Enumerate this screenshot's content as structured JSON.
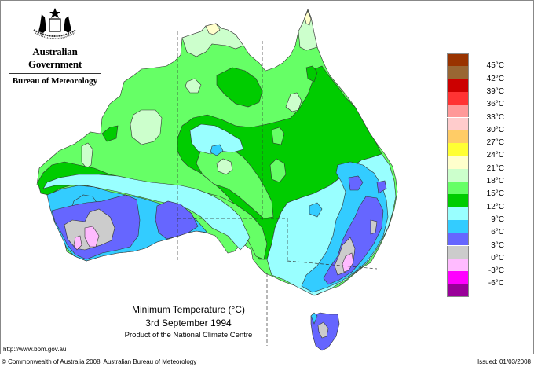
{
  "header": {
    "government": "Australian Government",
    "agency": "Bureau of Meteorology",
    "emblem_icon": "coat-of-arms-icon"
  },
  "map": {
    "title": "Minimum Temperature (°C)",
    "date": "3rd September 1994",
    "product": "Product of the National Climate Centre",
    "region": "Australia"
  },
  "legend": {
    "unit": "°C",
    "bands": [
      {
        "color": "#993300",
        "label": "45°C"
      },
      {
        "color": "#996633",
        "label": "42°C"
      },
      {
        "color": "#cc0000",
        "label": "39°C"
      },
      {
        "color": "#ff3333",
        "label": "36°C"
      },
      {
        "color": "#ff9999",
        "label": "33°C"
      },
      {
        "color": "#ffcccc",
        "label": "30°C"
      },
      {
        "color": "#ffcc66",
        "label": "27°C"
      },
      {
        "color": "#ffff33",
        "label": "24°C"
      },
      {
        "color": "#ffffcc",
        "label": "21°C"
      },
      {
        "color": "#ccffcc",
        "label": "18°C"
      },
      {
        "color": "#66ff66",
        "label": "15°C"
      },
      {
        "color": "#00cc00",
        "label": "12°C"
      },
      {
        "color": "#99ffff",
        "label": "9°C"
      },
      {
        "color": "#33ccff",
        "label": "6°C"
      },
      {
        "color": "#6666ff",
        "label": "3°C"
      },
      {
        "color": "#cccccc",
        "label": "0°C"
      },
      {
        "color": "#ffbbff",
        "label": "-3°C"
      },
      {
        "color": "#ff00ff",
        "label": "-6°C"
      },
      {
        "color": "#990099",
        "label": ""
      }
    ]
  },
  "footer": {
    "url": "http://www.bom.gov.au",
    "copyright": "© Commonwealth of Australia 2008, Australian Bureau of Meteorology",
    "issued": "Issued: 01/03/2008"
  }
}
